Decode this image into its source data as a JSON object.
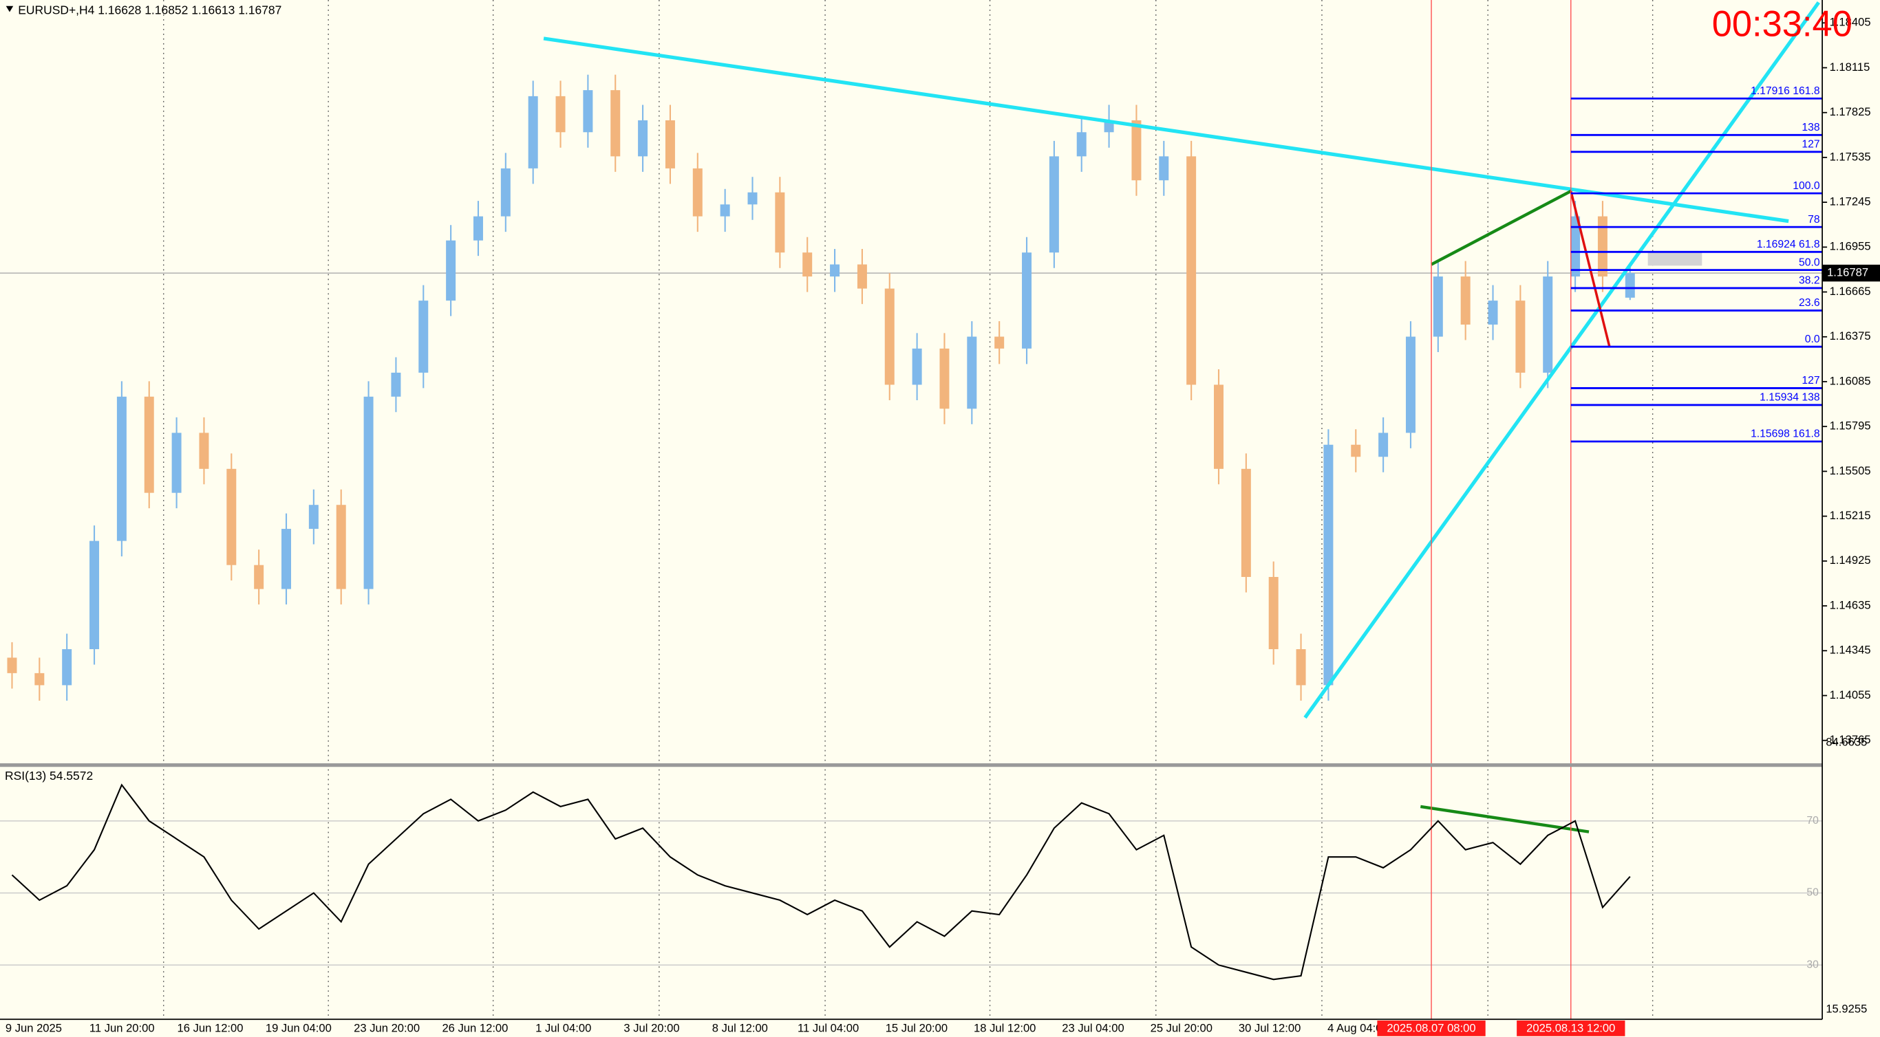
{
  "chart_data": {
    "type": "candlestick",
    "title": "EURUSD+,H4  1.16628 1.16852 1.16613 1.16787",
    "timer": "00:33:40",
    "ylim": [
      1.13617,
      1.18553
    ],
    "yticks": [
      1.18405,
      1.18115,
      1.17825,
      1.17535,
      1.17245,
      1.16955,
      1.16665,
      1.16375,
      1.16085,
      1.15795,
      1.15505,
      1.15215,
      1.14925,
      1.14635,
      1.14345,
      1.14055,
      1.13765
    ],
    "last_price": 1.16787,
    "time_labels": [
      "9 Jun 2025",
      "11 Jun 20:00",
      "16 Jun 12:00",
      "19 Jun 04:00",
      "23 Jun 20:00",
      "26 Jun 12:00",
      "1 Jul 04:00",
      "3 Jul 20:00",
      "8 Jul 12:00",
      "11 Jul 04:00",
      "15 Jul 20:00",
      "18 Jul 12:00",
      "23 Jul 04:00",
      "25 Jul 20:00",
      "30 Jul 12:00",
      "4 Aug 04:00"
    ],
    "markers": [
      "2025.08.07 08:00",
      "2025.08.13 12:00"
    ],
    "bull_color": "#7fb8ea",
    "bear_color": "#f2b47c",
    "candles": [
      [
        1.143,
        1.144,
        1.141,
        1.142
      ],
      [
        1.142,
        1.143,
        1.14022,
        1.14122
      ],
      [
        1.14122,
        1.14455,
        1.14022,
        1.14355
      ],
      [
        1.14355,
        1.15155,
        1.14255,
        1.15055
      ],
      [
        1.15055,
        1.16088,
        1.14955,
        1.15988
      ],
      [
        1.15988,
        1.16088,
        1.15266,
        1.15366
      ],
      [
        1.15366,
        1.15854,
        1.15266,
        1.15754
      ],
      [
        1.15754,
        1.15854,
        1.15421,
        1.15521
      ],
      [
        1.15521,
        1.15621,
        1.14799,
        1.14899
      ],
      [
        1.14899,
        1.14999,
        1.14644,
        1.14744
      ],
      [
        1.14744,
        1.15233,
        1.14644,
        1.15133
      ],
      [
        1.15133,
        1.15388,
        1.15033,
        1.15288
      ],
      [
        1.15288,
        1.15388,
        1.14644,
        1.14744
      ],
      [
        1.14744,
        1.16088,
        1.14644,
        1.15988
      ],
      [
        1.15988,
        1.16243,
        1.15888,
        1.16143
      ],
      [
        1.16143,
        1.16709,
        1.16043,
        1.16609
      ],
      [
        1.16609,
        1.17098,
        1.16509,
        1.16998
      ],
      [
        1.16998,
        1.17254,
        1.16898,
        1.17154
      ],
      [
        1.17154,
        1.17564,
        1.17054,
        1.17464
      ],
      [
        1.17464,
        1.18031,
        1.17364,
        1.17931
      ],
      [
        1.17931,
        1.18031,
        1.17598,
        1.17698
      ],
      [
        1.17698,
        1.1807,
        1.17598,
        1.1797
      ],
      [
        1.1797,
        1.1807,
        1.17442,
        1.17542
      ],
      [
        1.17542,
        1.17875,
        1.17442,
        1.17775
      ],
      [
        1.17775,
        1.17875,
        1.17364,
        1.17464
      ],
      [
        1.17464,
        1.17564,
        1.17054,
        1.17154
      ],
      [
        1.17154,
        1.17331,
        1.17054,
        1.17231
      ],
      [
        1.17231,
        1.17409,
        1.17131,
        1.17309
      ],
      [
        1.17309,
        1.17409,
        1.1682,
        1.1692
      ],
      [
        1.1692,
        1.1702,
        1.16665,
        1.16765
      ],
      [
        1.16765,
        1.16943,
        1.16665,
        1.16843
      ],
      [
        1.16843,
        1.16943,
        1.16587,
        1.16687
      ],
      [
        1.16687,
        1.16787,
        1.15965,
        1.16065
      ],
      [
        1.16065,
        1.16399,
        1.15965,
        1.16299
      ],
      [
        1.16299,
        1.16399,
        1.1581,
        1.1591
      ],
      [
        1.1591,
        1.16476,
        1.1581,
        1.16376
      ],
      [
        1.16376,
        1.16476,
        1.16199,
        1.16299
      ],
      [
        1.16299,
        1.1702,
        1.16199,
        1.1692
      ],
      [
        1.1692,
        1.17642,
        1.1682,
        1.17542
      ],
      [
        1.17542,
        1.17798,
        1.17442,
        1.17698
      ],
      [
        1.17698,
        1.17875,
        1.17598,
        1.17775
      ],
      [
        1.17775,
        1.17875,
        1.17287,
        1.17387
      ],
      [
        1.17387,
        1.17642,
        1.17287,
        1.17542
      ],
      [
        1.17542,
        1.17642,
        1.15965,
        1.16065
      ],
      [
        1.16065,
        1.16165,
        1.15421,
        1.15521
      ],
      [
        1.15521,
        1.15621,
        1.14722,
        1.14822
      ],
      [
        1.14822,
        1.14922,
        1.14255,
        1.14355
      ],
      [
        1.14355,
        1.14455,
        1.14022,
        1.14122
      ],
      [
        1.14122,
        1.15777,
        1.14022,
        1.15677
      ],
      [
        1.15677,
        1.15777,
        1.15499,
        1.15599
      ],
      [
        1.15599,
        1.15854,
        1.15499,
        1.15754
      ],
      [
        1.15754,
        1.16476,
        1.15654,
        1.16376
      ],
      [
        1.16376,
        1.16865,
        1.16276,
        1.16765
      ],
      [
        1.16765,
        1.16865,
        1.16354,
        1.16454
      ],
      [
        1.16454,
        1.16709,
        1.16354,
        1.16609
      ],
      [
        1.16609,
        1.16709,
        1.16043,
        1.16143
      ],
      [
        1.16143,
        1.16865,
        1.16043,
        1.16765
      ],
      [
        1.16765,
        1.17254,
        1.16665,
        1.17154
      ],
      [
        1.17154,
        1.17254,
        1.16665,
        1.16765
      ],
      [
        1.16628,
        1.16852,
        1.16613,
        1.16787
      ]
    ],
    "fib_levels": [
      {
        "label": "1.17916  161.8",
        "price": 1.17916
      },
      {
        "label": "138",
        "price": 1.1768
      },
      {
        "label": "127",
        "price": 1.17571
      },
      {
        "label": "100.0",
        "price": 1.17303
      },
      {
        "label": "78",
        "price": 1.17085
      },
      {
        "label": "1.16924  61.8",
        "price": 1.16924
      },
      {
        "label": "50.0",
        "price": 1.16807
      },
      {
        "label": "38.2",
        "price": 1.1669
      },
      {
        "label": "23.6",
        "price": 1.16545
      },
      {
        "label": "0.0",
        "price": 1.16311
      },
      {
        "label": "127",
        "price": 1.16043
      },
      {
        "label": "1.15934  138",
        "price": 1.15934
      },
      {
        "label": "1.15698  161.8",
        "price": 1.15698
      }
    ],
    "fib_color": "#0000ff",
    "rsi": {
      "label": "RSI(13) 54.5572",
      "ylim": [
        15.9255,
        84.6635
      ],
      "yticks": [
        70,
        50,
        30
      ],
      "color": "#000000",
      "values": [
        55,
        48,
        52,
        62,
        80,
        70,
        65,
        60,
        48,
        40,
        45,
        50,
        42,
        58,
        65,
        72,
        76,
        70,
        73,
        78,
        74,
        76,
        65,
        68,
        60,
        55,
        52,
        50,
        48,
        44,
        48,
        45,
        35,
        42,
        38,
        45,
        44,
        55,
        68,
        75,
        72,
        62,
        66,
        35,
        30,
        28,
        26,
        27,
        60,
        60,
        57,
        62,
        70,
        62,
        64,
        58,
        66,
        70,
        46,
        54.5572
      ]
    }
  }
}
